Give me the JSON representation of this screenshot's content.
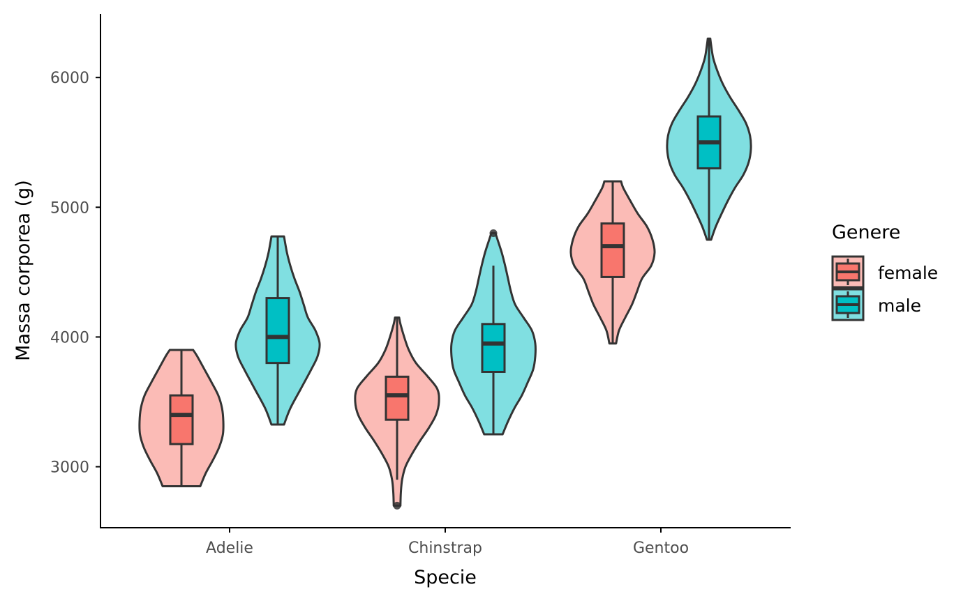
{
  "chart_data": {
    "type": "violin",
    "xlabel": "Specie",
    "ylabel": "Massa corporea (g)",
    "categories": [
      "Adelie",
      "Chinstrap",
      "Gentoo"
    ],
    "ylim": [
      2530,
      6490
    ],
    "y_ticks": [
      3000,
      4000,
      5000,
      6000
    ],
    "grid": false,
    "legend": {
      "title": "Genere",
      "position": "right",
      "entries": [
        "female",
        "male"
      ]
    },
    "colors": {
      "female_box": "#F8766D",
      "female_violin": "#FBBBB6",
      "male_box": "#00BFC4",
      "male_violin": "#80DFE1",
      "outline": "#333333"
    },
    "series": [
      {
        "name": "female",
        "groups": [
          {
            "category": "Adelie",
            "min": 2850,
            "q1": 3175,
            "median": 3400,
            "q3": 3550,
            "max": 3900,
            "outliers": [],
            "density": [
              [
                2850,
                0.45
              ],
              [
                2950,
                0.58
              ],
              [
                3050,
                0.75
              ],
              [
                3150,
                0.9
              ],
              [
                3250,
                0.99
              ],
              [
                3350,
                1.0
              ],
              [
                3450,
                0.97
              ],
              [
                3550,
                0.88
              ],
              [
                3650,
                0.72
              ],
              [
                3750,
                0.55
              ],
              [
                3850,
                0.38
              ],
              [
                3900,
                0.28
              ]
            ]
          },
          {
            "category": "Chinstrap",
            "min": 2900,
            "q1": 3362,
            "median": 3550,
            "q3": 3694,
            "max": 4150,
            "outliers": [
              2700
            ],
            "density": [
              [
                2700,
                0.08
              ],
              [
                2800,
                0.09
              ],
              [
                2900,
                0.12
              ],
              [
                3000,
                0.2
              ],
              [
                3100,
                0.36
              ],
              [
                3200,
                0.55
              ],
              [
                3300,
                0.76
              ],
              [
                3400,
                0.93
              ],
              [
                3500,
                1.0
              ],
              [
                3600,
                0.96
              ],
              [
                3700,
                0.72
              ],
              [
                3800,
                0.45
              ],
              [
                3900,
                0.28
              ],
              [
                4000,
                0.17
              ],
              [
                4100,
                0.08
              ],
              [
                4150,
                0.05
              ]
            ]
          },
          {
            "category": "Gentoo",
            "min": 3950,
            "q1": 4462,
            "median": 4700,
            "q3": 4875,
            "max": 5200,
            "outliers": [],
            "density": [
              [
                3950,
                0.08
              ],
              [
                4050,
                0.15
              ],
              [
                4150,
                0.3
              ],
              [
                4250,
                0.46
              ],
              [
                4350,
                0.58
              ],
              [
                4450,
                0.7
              ],
              [
                4550,
                0.92
              ],
              [
                4650,
                1.0
              ],
              [
                4750,
                0.95
              ],
              [
                4850,
                0.82
              ],
              [
                4950,
                0.6
              ],
              [
                5050,
                0.42
              ],
              [
                5150,
                0.25
              ],
              [
                5200,
                0.2
              ]
            ]
          }
        ]
      },
      {
        "name": "male",
        "groups": [
          {
            "category": "Adelie",
            "min": 3325,
            "q1": 3800,
            "median": 4000,
            "q3": 4300,
            "max": 4775,
            "outliers": [],
            "density": [
              [
                3325,
                0.15
              ],
              [
                3450,
                0.3
              ],
              [
                3600,
                0.55
              ],
              [
                3750,
                0.8
              ],
              [
                3850,
                0.95
              ],
              [
                3950,
                1.0
              ],
              [
                4050,
                0.9
              ],
              [
                4150,
                0.72
              ],
              [
                4250,
                0.62
              ],
              [
                4350,
                0.52
              ],
              [
                4450,
                0.4
              ],
              [
                4550,
                0.3
              ],
              [
                4650,
                0.22
              ],
              [
                4775,
                0.15
              ]
            ]
          },
          {
            "category": "Chinstrap",
            "min": 3250,
            "q1": 3731,
            "median": 3950,
            "q3": 4100,
            "max": 4550,
            "outliers": [
              4800
            ],
            "density": [
              [
                3250,
                0.22
              ],
              [
                3350,
                0.35
              ],
              [
                3450,
                0.5
              ],
              [
                3550,
                0.68
              ],
              [
                3650,
                0.82
              ],
              [
                3750,
                0.95
              ],
              [
                3850,
                1.0
              ],
              [
                3950,
                1.0
              ],
              [
                4050,
                0.92
              ],
              [
                4150,
                0.72
              ],
              [
                4250,
                0.52
              ],
              [
                4350,
                0.42
              ],
              [
                4450,
                0.35
              ],
              [
                4550,
                0.28
              ],
              [
                4650,
                0.2
              ],
              [
                4750,
                0.1
              ],
              [
                4800,
                0.05
              ]
            ]
          },
          {
            "category": "Gentoo",
            "min": 4750,
            "q1": 5300,
            "median": 5500,
            "q3": 5700,
            "max": 6300,
            "outliers": [],
            "density": [
              [
                4750,
                0.05
              ],
              [
                4850,
                0.16
              ],
              [
                4950,
                0.3
              ],
              [
                5050,
                0.45
              ],
              [
                5150,
                0.62
              ],
              [
                5250,
                0.82
              ],
              [
                5350,
                0.95
              ],
              [
                5450,
                1.0
              ],
              [
                5550,
                0.98
              ],
              [
                5650,
                0.88
              ],
              [
                5750,
                0.7
              ],
              [
                5850,
                0.5
              ],
              [
                5950,
                0.33
              ],
              [
                6050,
                0.2
              ],
              [
                6150,
                0.1
              ],
              [
                6250,
                0.05
              ],
              [
                6300,
                0.03
              ]
            ]
          }
        ]
      }
    ]
  }
}
